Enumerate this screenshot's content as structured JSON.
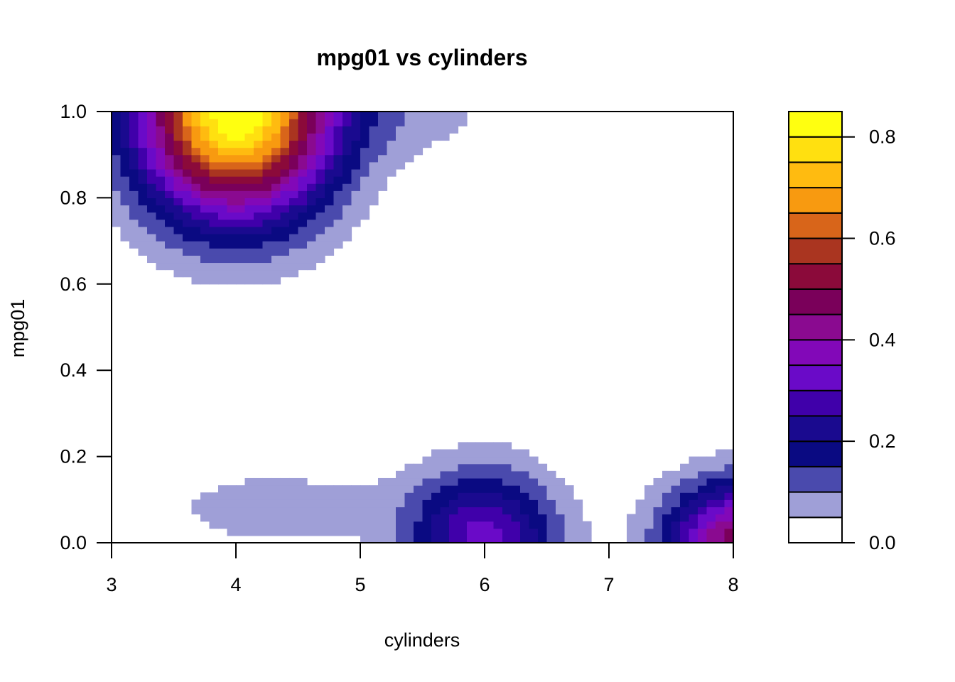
{
  "chart_data": {
    "type": "heatmap",
    "subtype": "filled-contour",
    "title": "mpg01 vs cylinders",
    "xlabel": "cylinders",
    "ylabel": "mpg01",
    "xlim": [
      3,
      8
    ],
    "ylim": [
      0,
      1
    ],
    "x_ticks": [
      "3",
      "4",
      "5",
      "6",
      "7",
      "8"
    ],
    "y_ticks": [
      "0.0",
      "0.2",
      "0.4",
      "0.6",
      "0.8",
      "1.0"
    ],
    "grid": false,
    "legend": {
      "placement": "right",
      "ticks": [
        "0.0",
        "0.2",
        "0.4",
        "0.6",
        "0.8"
      ],
      "range": [
        0,
        0.85
      ],
      "breaks": [
        0,
        0.05,
        0.1,
        0.15,
        0.2,
        0.25,
        0.3,
        0.35,
        0.4,
        0.45,
        0.5,
        0.55,
        0.6,
        0.65,
        0.7,
        0.75,
        0.8,
        0.85
      ],
      "colors": [
        "#ffffff",
        "#9f9fd7",
        "#4a4aad",
        "#0a0a82",
        "#1a0a8f",
        "#4000aa",
        "#6a0ac8",
        "#8208b8",
        "#8a0a90",
        "#7a005a",
        "#8b0a3a",
        "#aa3520",
        "#d8651a",
        "#f89a10",
        "#ffbb10",
        "#ffe010",
        "#ffff10"
      ]
    },
    "density_peaks": [
      {
        "cylinders": 4.0,
        "mpg01": 1.0,
        "value": 0.85
      },
      {
        "cylinders": 6.0,
        "mpg01": 0.0,
        "value": 0.33
      },
      {
        "cylinders": 8.0,
        "mpg01": 0.0,
        "value": 0.48
      }
    ]
  }
}
